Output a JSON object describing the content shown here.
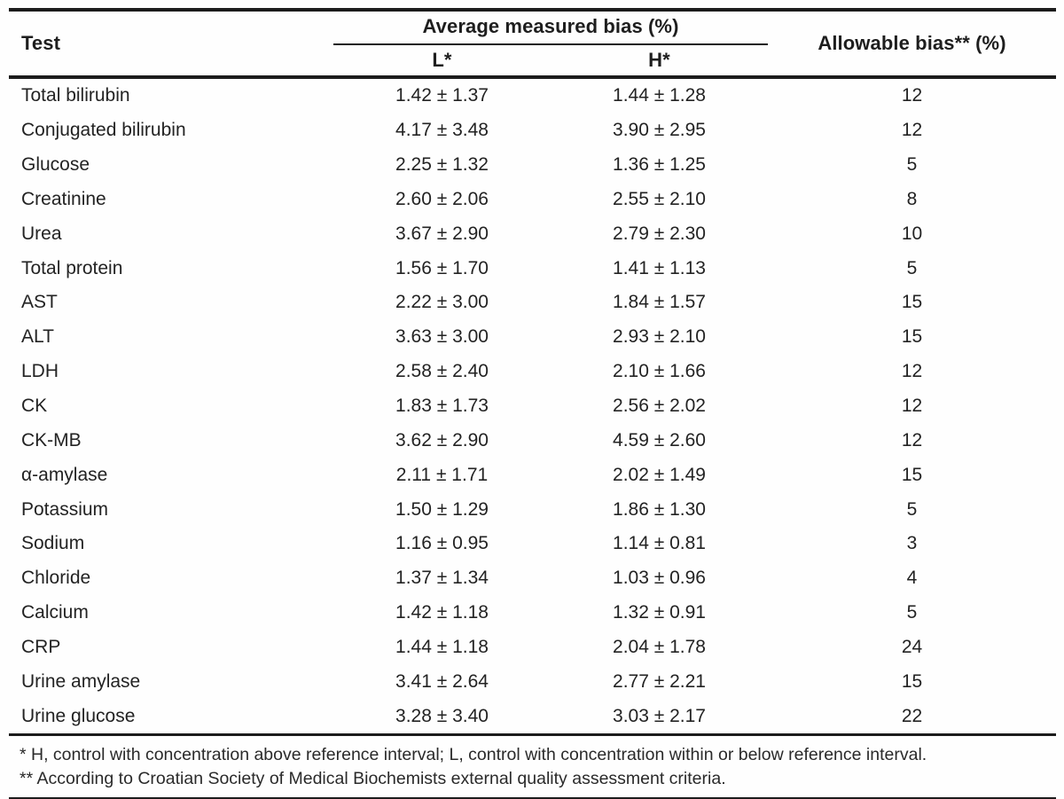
{
  "table": {
    "header": {
      "test": "Test",
      "group": "Average measured bias (%)",
      "sub_l": "L*",
      "sub_h": "H*",
      "allowable": "Allowable bias** (%)"
    },
    "rows": [
      {
        "test": "Total bilirubin",
        "l": "1.42 ± 1.37",
        "h": "1.44 ± 1.28",
        "allowable": "12"
      },
      {
        "test": "Conjugated bilirubin",
        "l": "4.17 ± 3.48",
        "h": "3.90 ± 2.95",
        "allowable": "12"
      },
      {
        "test": "Glucose",
        "l": "2.25 ± 1.32",
        "h": "1.36 ± 1.25",
        "allowable": "5"
      },
      {
        "test": "Creatinine",
        "l": "2.60 ± 2.06",
        "h": "2.55 ± 2.10",
        "allowable": "8"
      },
      {
        "test": "Urea",
        "l": "3.67 ± 2.90",
        "h": "2.79 ± 2.30",
        "allowable": "10"
      },
      {
        "test": "Total protein",
        "l": "1.56 ± 1.70",
        "h": "1.41 ± 1.13",
        "allowable": "5"
      },
      {
        "test": "AST",
        "l": "2.22 ± 3.00",
        "h": "1.84 ± 1.57",
        "allowable": "15"
      },
      {
        "test": "ALT",
        "l": "3.63 ± 3.00",
        "h": "2.93 ± 2.10",
        "allowable": "15"
      },
      {
        "test": "LDH",
        "l": "2.58 ± 2.40",
        "h": "2.10 ± 1.66",
        "allowable": "12"
      },
      {
        "test": "CK",
        "l": "1.83 ± 1.73",
        "h": "2.56 ± 2.02",
        "allowable": "12"
      },
      {
        "test": "CK-MB",
        "l": "3.62 ± 2.90",
        "h": "4.59 ± 2.60",
        "allowable": "12"
      },
      {
        "test": "α-amylase",
        "l": "2.11 ± 1.71",
        "h": "2.02 ± 1.49",
        "allowable": "15"
      },
      {
        "test": "Potassium",
        "l": "1.50 ± 1.29",
        "h": "1.86 ± 1.30",
        "allowable": "5"
      },
      {
        "test": "Sodium",
        "l": "1.16 ± 0.95",
        "h": "1.14 ± 0.81",
        "allowable": "3"
      },
      {
        "test": "Chloride",
        "l": "1.37 ± 1.34",
        "h": "1.03 ± 0.96",
        "allowable": "4"
      },
      {
        "test": "Calcium",
        "l": "1.42 ± 1.18",
        "h": "1.32 ± 0.91",
        "allowable": "5"
      },
      {
        "test": "CRP",
        "l": "1.44 ± 1.18",
        "h": "2.04 ± 1.78",
        "allowable": "24"
      },
      {
        "test": "Urine amylase",
        "l": "3.41 ± 2.64",
        "h": "2.77 ± 2.21",
        "allowable": "15"
      },
      {
        "test": "Urine glucose",
        "l": "3.28 ± 3.40",
        "h": "3.03 ± 2.17",
        "allowable": "22"
      }
    ],
    "footnotes": [
      "* H, control with concentration above reference interval; L, control with concentration within or below reference interval.",
      "** According to Croatian Society of Medical Biochemists external quality assessment criteria."
    ]
  },
  "colors": {
    "text": "#232323",
    "rule": "#1c1c1c",
    "background": "#fefefe"
  }
}
